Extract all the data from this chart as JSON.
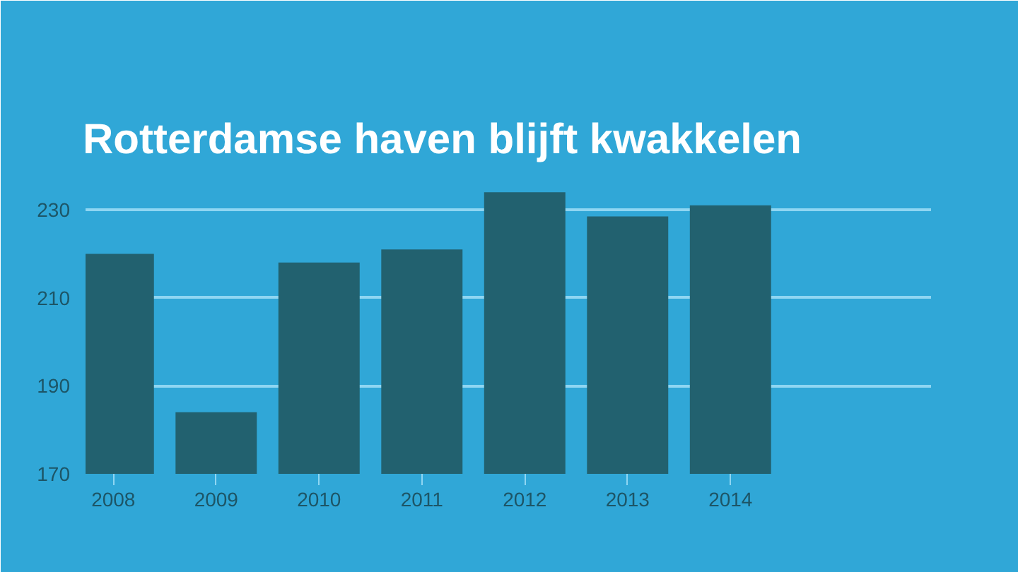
{
  "chart_data": {
    "type": "bar",
    "title": "Rotterdamse haven blijft kwakkelen",
    "categories": [
      "2008",
      "2009",
      "2010",
      "2011",
      "2012",
      "2013",
      "2014"
    ],
    "values": [
      220,
      184,
      218,
      221,
      234,
      228.5,
      231
    ],
    "color": "#22616f",
    "ylim": [
      170,
      239
    ],
    "yticks": [
      170,
      190,
      210,
      230
    ],
    "grid": "y"
  }
}
